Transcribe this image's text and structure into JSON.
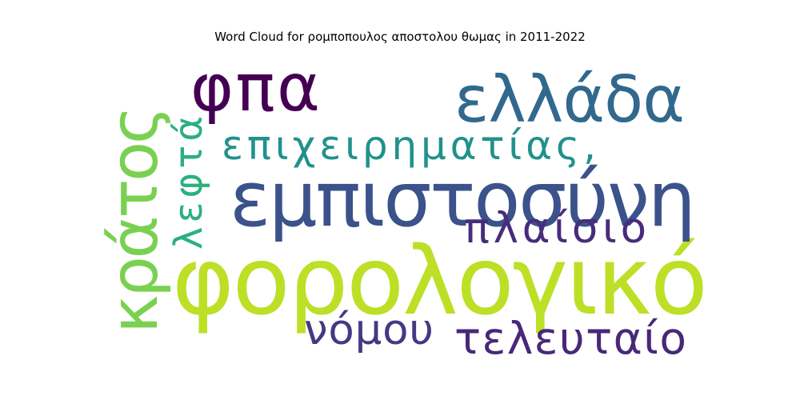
{
  "chart_data": {
    "type": "wordcloud",
    "title": "Word Cloud for ρομποπουλος αποστολου θωμας in 2011-2022",
    "words": [
      {
        "text": "φορολογικό",
        "color": "#bddf26"
      },
      {
        "text": "εμπιστοσύνη",
        "color": "#3b528b"
      },
      {
        "text": "φπα",
        "color": "#440154"
      },
      {
        "text": "ελλάδα",
        "color": "#31688e"
      },
      {
        "text": "κράτος",
        "color": "#7ad151"
      },
      {
        "text": "επιχειρηματίας,",
        "color": "#21918c"
      },
      {
        "text": "πλαίσιο",
        "color": "#472d7b"
      },
      {
        "text": "λεφτά",
        "color": "#2ab07f"
      },
      {
        "text": "νόμου",
        "color": "#443983"
      },
      {
        "text": "τελευταίο",
        "color": "#482878"
      }
    ]
  }
}
